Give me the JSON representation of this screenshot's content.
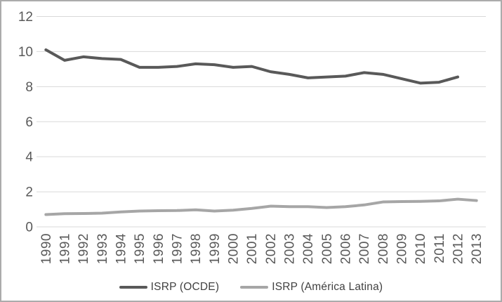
{
  "chart_data": {
    "type": "line",
    "title": "",
    "xlabel": "",
    "ylabel": "",
    "categories": [
      "1990",
      "1991",
      "1992",
      "1993",
      "1994",
      "1995",
      "1996",
      "1997",
      "1998",
      "1999",
      "2000",
      "2001",
      "2002",
      "2003",
      "2004",
      "2005",
      "2006",
      "2007",
      "2008",
      "2009",
      "2010",
      "2011",
      "2012",
      "2013"
    ],
    "series": [
      {
        "name": "ISRP (OCDE)",
        "color": "#595959",
        "values": [
          10.1,
          9.5,
          9.7,
          9.6,
          9.55,
          9.1,
          9.1,
          9.15,
          9.3,
          9.25,
          9.1,
          9.15,
          8.85,
          8.7,
          8.5,
          8.55,
          8.6,
          8.8,
          8.7,
          8.45,
          8.2,
          8.25,
          8.55,
          null
        ]
      },
      {
        "name": "ISRP (América Latina)",
        "color": "#a6a6a6",
        "values": [
          0.7,
          0.75,
          0.76,
          0.78,
          0.85,
          0.9,
          0.92,
          0.93,
          0.97,
          0.9,
          0.95,
          1.05,
          1.18,
          1.15,
          1.15,
          1.1,
          1.15,
          1.25,
          1.42,
          1.44,
          1.45,
          1.48,
          1.58,
          1.5
        ]
      }
    ],
    "ylim": [
      0,
      12
    ],
    "yticks": [
      0,
      2,
      4,
      6,
      8,
      10,
      12
    ],
    "grid": true,
    "legend_position": "bottom",
    "gridline_color": "#d9d9d9",
    "tick_label_color": "#595959",
    "line_width": 4
  }
}
